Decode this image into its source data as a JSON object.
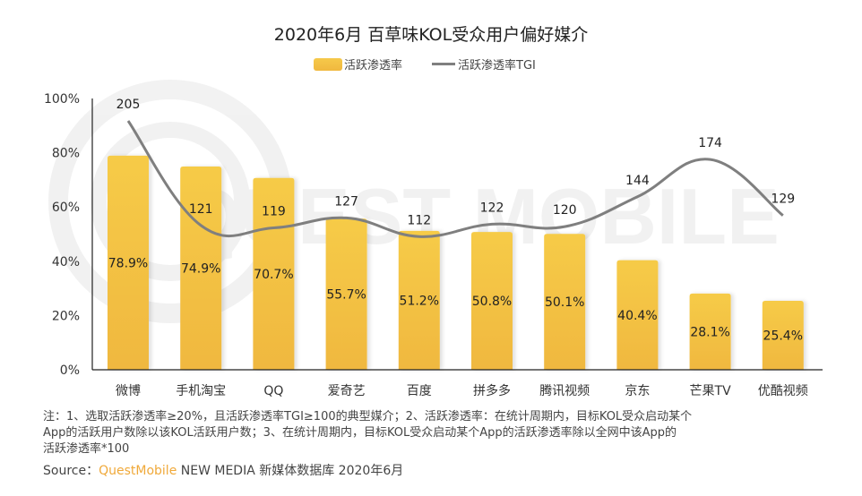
{
  "chart_data": {
    "type": "bar",
    "title": "2020年6月 百草味KOL受众用户偏好媒介",
    "categories": [
      "微博",
      "手机淘宝",
      "QQ",
      "爱奇艺",
      "百度",
      "拼多多",
      "腾讯视频",
      "京东",
      "芒果TV",
      "优酷视频"
    ],
    "series": [
      {
        "name": "活跃渗透率",
        "type": "bar",
        "values": [
          78.9,
          74.9,
          70.7,
          55.7,
          51.2,
          50.8,
          50.1,
          40.4,
          28.1,
          25.4
        ],
        "labels": [
          "78.9%",
          "74.9%",
          "70.7%",
          "55.7%",
          "51.2%",
          "50.8%",
          "50.1%",
          "40.4%",
          "28.1%",
          "25.4%"
        ]
      },
      {
        "name": "活跃渗透率TGI",
        "type": "line",
        "values": [
          205,
          121,
          119,
          127,
          112,
          122,
          120,
          144,
          174,
          129
        ],
        "labels": [
          "205",
          "121",
          "119",
          "127",
          "112",
          "122",
          "120",
          "144",
          "174",
          "129"
        ]
      }
    ],
    "yaxis": {
      "ylim": [
        0,
        100
      ],
      "ticks": [
        "0%",
        "20%",
        "40%",
        "60%",
        "80%",
        "100%"
      ]
    },
    "legend_position": "top-center",
    "colors": {
      "bar_top": "#f6cb47",
      "bar_bottom": "#f0b840",
      "line": "#7f7f7f"
    }
  },
  "legend": {
    "bar_label": "活跃渗透率",
    "line_label": "活跃渗透率TGI"
  },
  "watermark": "QUEST MOBILE",
  "notes": {
    "line1": "注：1、选取活跃渗透率≥20%，且活跃渗透率TGI≥100的典型媒介；2、活跃渗透率：在统计周期内，目标KOL受众启动某个",
    "line2": "App的活跃用户数除以该KOL活跃用户数；3、在统计周期内，目标KOL受众启动某个App的活跃渗透率除以全网中该App的",
    "line3": "活跃渗透率*100"
  },
  "source": {
    "prefix": "Source：",
    "brand": "QuestMobile",
    "suffix": " NEW MEDIA 新媒体数据库 2020年6月"
  }
}
